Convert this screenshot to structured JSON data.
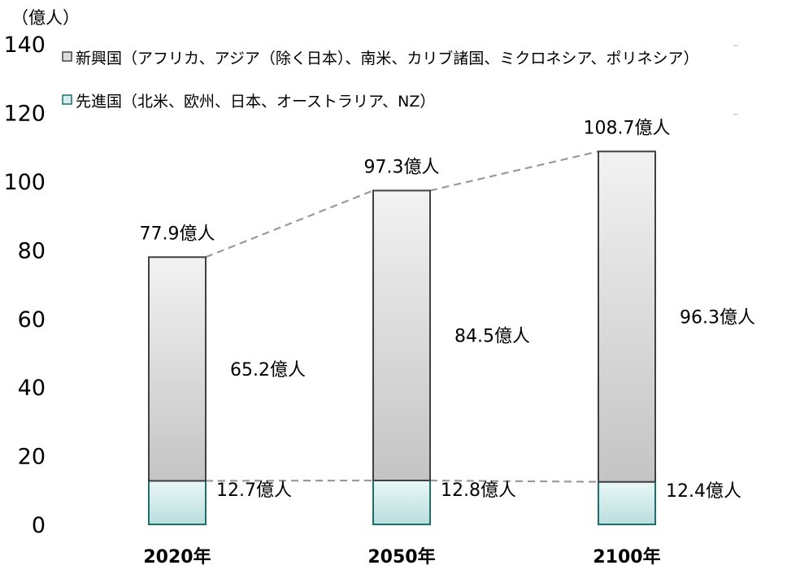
{
  "chart_data": {
    "type": "bar",
    "stacked": true,
    "unit_label": "（億人）",
    "categories": [
      "2020年",
      "2050年",
      "2100年"
    ],
    "series": [
      {
        "name": "先進国（北米、欧州、日本、オーストラリア、NZ）",
        "values": [
          12.7,
          12.8,
          12.4
        ],
        "labels": [
          "12.7億人",
          "12.8億人",
          "12.4億人"
        ],
        "color": "#d3ecec",
        "border": "#1e6e6e"
      },
      {
        "name": "新興国（アフリカ、アジア（除く日本）、南米、カリブ諸国、ミクロネシア、ポリネシア）",
        "values": [
          65.2,
          84.5,
          96.3
        ],
        "labels": [
          "65.2億人",
          "84.5億人",
          "96.3億人"
        ],
        "color": "#d0d0d0",
        "border": "#404040"
      }
    ],
    "totals": [
      77.9,
      97.3,
      108.7
    ],
    "total_labels": [
      "77.9億人",
      "97.3億人",
      "108.7億人"
    ],
    "y_ticks": [
      "0",
      "20",
      "40",
      "60",
      "80",
      "100",
      "120",
      "140"
    ],
    "ylim": [
      0,
      140
    ],
    "grid": false,
    "legend_position": "top",
    "connector_lines": "dashed"
  }
}
